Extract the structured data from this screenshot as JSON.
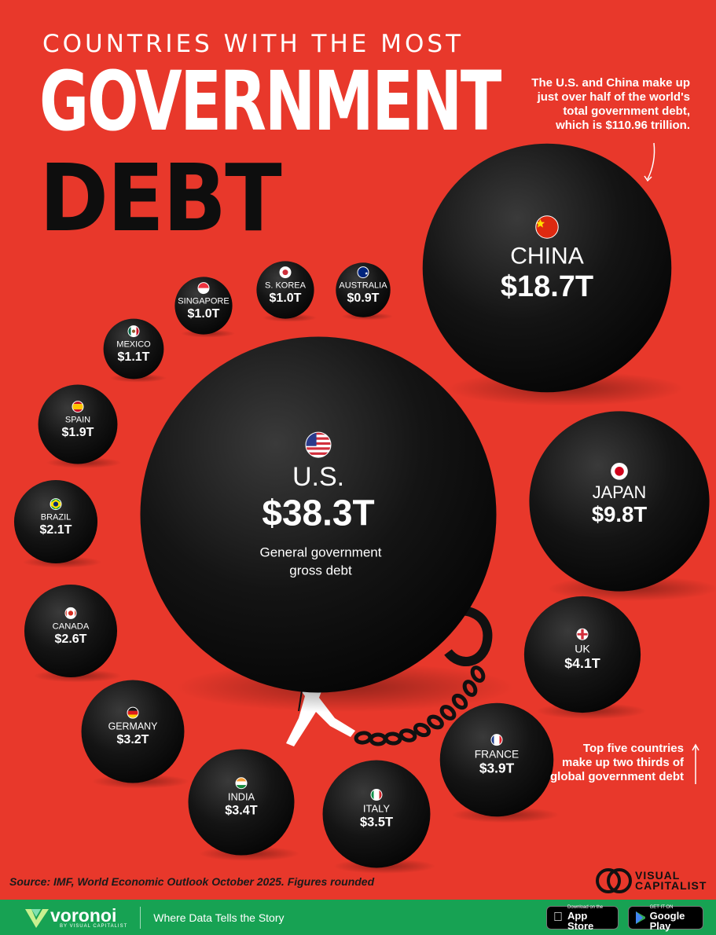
{
  "header": {
    "line1": "COUNTRIES WITH THE MOST",
    "line2": "GOVERNMENT",
    "line3": "DEBT"
  },
  "notes": {
    "top": [
      "The U.S. and China make up",
      "just over half of the world's",
      "total government debt,",
      "which is $110.96 trillion."
    ],
    "bottom": [
      "Top five countries",
      "make up two thirds of",
      "global government debt"
    ]
  },
  "source": "Source: IMF, World Economic Outlook October 2025. Figures rounded",
  "vc_logo": [
    "VISUAL",
    "CAPITALIST"
  ],
  "footer": {
    "brand": "voronoi",
    "brand_sub": "BY VISUAL CAPITALIST",
    "tagline": "Where Data Tells the Story",
    "app_store_small": "Download on the",
    "app_store": "App Store",
    "google_small": "GET IT ON",
    "google": "Google Play"
  },
  "colors": {
    "background": "#e8382b",
    "ball": "#111111",
    "text": "#ffffff",
    "footer": "#17a253"
  },
  "chart_data": {
    "type": "bubble",
    "unit": "trillion USD",
    "us_sublabel": "General government gross debt",
    "countries": [
      {
        "name": "U.S.",
        "label": "$38.3T",
        "value": 38.3,
        "flag": "us-flag"
      },
      {
        "name": "CHINA",
        "label": "$18.7T",
        "value": 18.7,
        "flag": "china-flag"
      },
      {
        "name": "JAPAN",
        "label": "$9.8T",
        "value": 9.8,
        "flag": "japan-flag"
      },
      {
        "name": "UK",
        "label": "$4.1T",
        "value": 4.1,
        "flag": "uk-flag"
      },
      {
        "name": "FRANCE",
        "label": "$3.9T",
        "value": 3.9,
        "flag": "france-flag"
      },
      {
        "name": "ITALY",
        "label": "$3.5T",
        "value": 3.5,
        "flag": "italy-flag"
      },
      {
        "name": "INDIA",
        "label": "$3.4T",
        "value": 3.4,
        "flag": "india-flag"
      },
      {
        "name": "GERMANY",
        "label": "$3.2T",
        "value": 3.2,
        "flag": "germany-flag"
      },
      {
        "name": "CANADA",
        "label": "$2.6T",
        "value": 2.6,
        "flag": "canada-flag"
      },
      {
        "name": "BRAZIL",
        "label": "$2.1T",
        "value": 2.1,
        "flag": "brazil-flag"
      },
      {
        "name": "SPAIN",
        "label": "$1.9T",
        "value": 1.9,
        "flag": "spain-flag"
      },
      {
        "name": "MEXICO",
        "label": "$1.1T",
        "value": 1.1,
        "flag": "mexico-flag"
      },
      {
        "name": "SINGAPORE",
        "label": "$1.0T",
        "value": 1.0,
        "flag": "singapore-flag"
      },
      {
        "name": "S. KOREA",
        "label": "$1.0T",
        "value": 1.0,
        "flag": "south-korea-flag"
      },
      {
        "name": "AUSTRALIA",
        "label": "$0.9T",
        "value": 0.9,
        "flag": "australia-flag"
      }
    ]
  }
}
